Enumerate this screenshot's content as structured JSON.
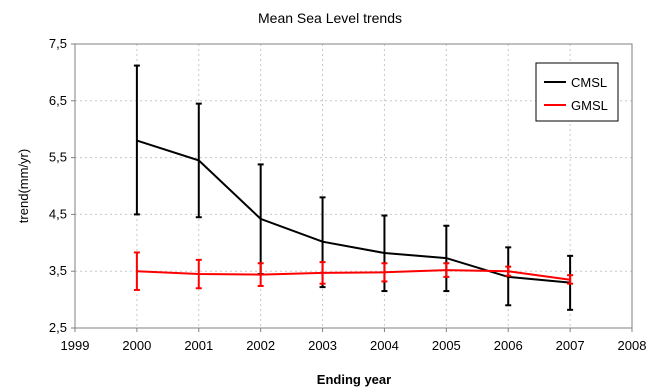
{
  "chart_data": {
    "type": "line",
    "title": "Mean Sea Level trends",
    "xlabel": "Ending year",
    "ylabel": "trend(mm/yr)",
    "xlim": [
      1999,
      2008
    ],
    "ylim": [
      2.5,
      7.5
    ],
    "x_ticks": [
      1999,
      2000,
      2001,
      2002,
      2003,
      2004,
      2005,
      2006,
      2007,
      2008
    ],
    "y_ticks": [
      2.5,
      3.5,
      4.5,
      5.5,
      6.5,
      7.5
    ],
    "y_tick_labels": [
      "2,5",
      "3,5",
      "4,5",
      "5,5",
      "6,5",
      "7,5"
    ],
    "grid": true,
    "legend_position": "top-right",
    "series": [
      {
        "name": "CMSL",
        "color": "#000000",
        "x": [
          2000,
          2001,
          2002,
          2003,
          2004,
          2005,
          2006,
          2007
        ],
        "y": [
          5.8,
          5.45,
          4.42,
          4.02,
          3.82,
          3.73,
          3.4,
          3.3
        ],
        "err_low": [
          4.5,
          4.45,
          3.45,
          3.22,
          3.15,
          3.15,
          2.9,
          2.82
        ],
        "err_high": [
          7.12,
          6.45,
          5.38,
          4.8,
          4.48,
          4.3,
          3.92,
          3.77
        ]
      },
      {
        "name": "GMSL",
        "color": "#ff0000",
        "x": [
          2000,
          2001,
          2002,
          2003,
          2004,
          2005,
          2006,
          2007
        ],
        "y": [
          3.5,
          3.45,
          3.44,
          3.47,
          3.48,
          3.52,
          3.5,
          3.35
        ],
        "err_low": [
          3.17,
          3.2,
          3.24,
          3.28,
          3.32,
          3.4,
          3.42,
          3.28
        ],
        "err_high": [
          3.83,
          3.7,
          3.64,
          3.66,
          3.64,
          3.64,
          3.58,
          3.43
        ]
      }
    ]
  }
}
